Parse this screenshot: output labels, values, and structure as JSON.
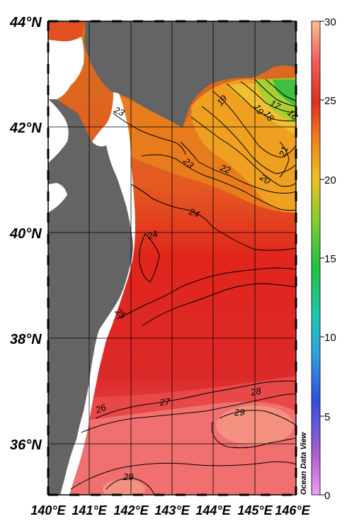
{
  "map": {
    "lat_labels": [
      "44°N",
      "42°N",
      "40°N",
      "38°N",
      "36°N"
    ],
    "lon_labels": [
      "140°E",
      "141°E",
      "142°E",
      "143°E",
      "144°E",
      "145°E",
      "146°E"
    ],
    "extent": {
      "lon_min": 140,
      "lon_max": 146,
      "lat_min": 35,
      "lat_max": 44
    },
    "land_color": "#646464",
    "credit": "Ocean Data View"
  },
  "colorbar": {
    "ticks": [
      "30",
      "25",
      "20",
      "15",
      "10",
      "5",
      "0"
    ],
    "min": 0,
    "max": 30
  },
  "contour_labels": [
    "23",
    "19",
    "19",
    "17",
    "18",
    "16",
    "21",
    "23",
    "22",
    "20",
    "24",
    "24",
    "25",
    "28",
    "27",
    "26",
    "29",
    "29"
  ]
}
